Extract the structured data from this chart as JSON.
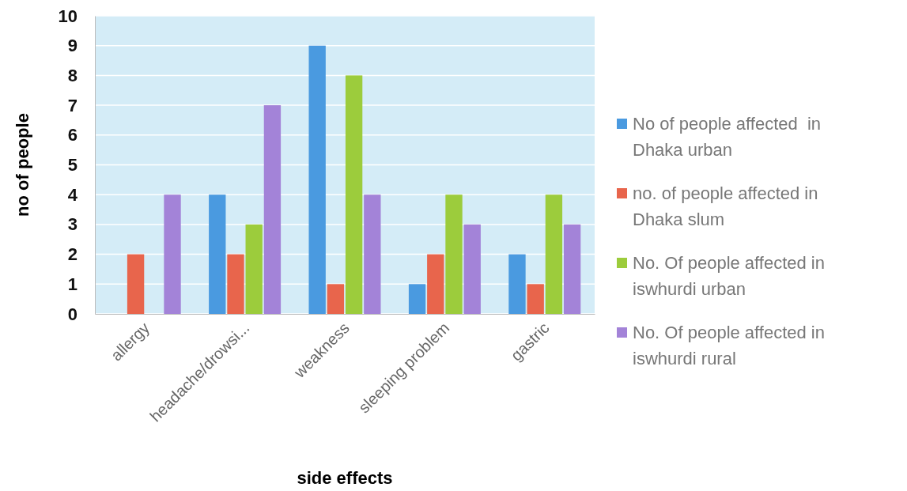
{
  "chart_data": {
    "type": "bar",
    "xlabel": "side effects",
    "ylabel": "no of people",
    "categories": [
      "allergy",
      "headache/drowsi...",
      "weakness",
      "sleeping problem",
      "gastric"
    ],
    "series": [
      {
        "name": "No of people affected  in Dhaka urban",
        "color": "#4a9ae0",
        "values": [
          0,
          4,
          9,
          1,
          2
        ]
      },
      {
        "name": "no. of people affected in Dhaka slum",
        "color": "#e8654c",
        "values": [
          2,
          2,
          1,
          2,
          1
        ]
      },
      {
        "name": "No. Of people affected in iswhurdi urban",
        "color": "#9ccc3c",
        "values": [
          0,
          3,
          8,
          4,
          4
        ]
      },
      {
        "name": "No. Of people affected in iswhurdi rural",
        "color": "#a383d8",
        "values": [
          4,
          7,
          4,
          3,
          3
        ]
      }
    ],
    "ylim": [
      0,
      10
    ],
    "yticks": [
      0,
      1,
      2,
      3,
      4,
      5,
      6,
      7,
      8,
      9,
      10
    ],
    "grid": "y",
    "legend": "right"
  }
}
